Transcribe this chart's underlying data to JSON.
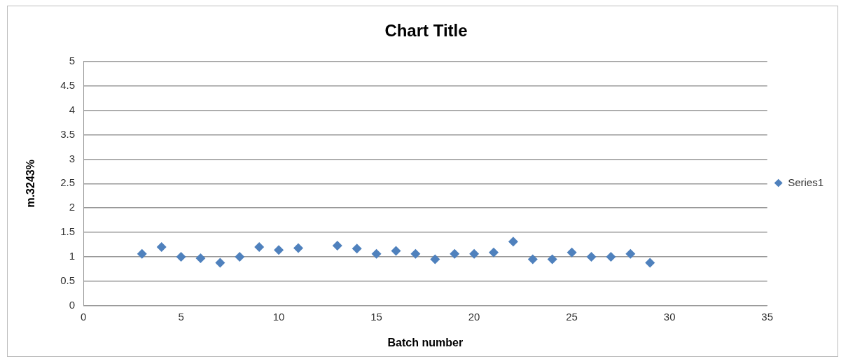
{
  "chart_data": {
    "type": "scatter",
    "title": "Chart Title",
    "xlabel": "Batch number",
    "ylabel": "m.3243%",
    "x": [
      3,
      4,
      5,
      6,
      7,
      8,
      9,
      10,
      11,
      13,
      14,
      15,
      16,
      17,
      18,
      19,
      20,
      21,
      22,
      23,
      24,
      25,
      26,
      27,
      28,
      29
    ],
    "series": [
      {
        "name": "Series1",
        "color": "#4f81bd",
        "values": [
          1.06,
          1.2,
          1.0,
          0.97,
          0.88,
          1.0,
          1.2,
          1.14,
          1.18,
          1.23,
          1.17,
          1.06,
          1.12,
          1.06,
          0.95,
          1.06,
          1.06,
          1.09,
          1.31,
          0.95,
          0.95,
          1.09,
          1.0,
          1.0,
          1.06,
          0.88
        ]
      }
    ],
    "xlim": [
      0,
      35
    ],
    "xticks": [
      0,
      5,
      10,
      15,
      20,
      25,
      30,
      35
    ],
    "ylim": [
      0,
      5
    ],
    "yticks": [
      0,
      0.5,
      1,
      1.5,
      2,
      2.5,
      3,
      3.5,
      4,
      4.5,
      5
    ],
    "grid": "y",
    "legend": "right",
    "marker": "diamond"
  }
}
